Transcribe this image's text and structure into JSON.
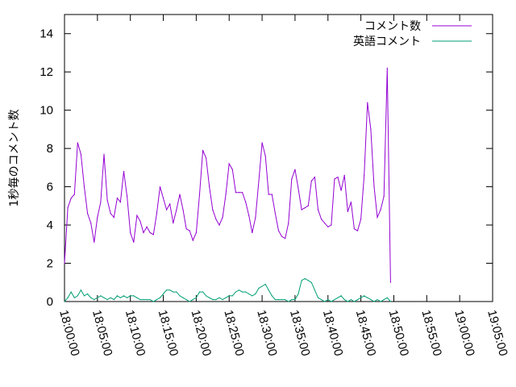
{
  "chart_data": {
    "type": "line",
    "title": "",
    "xlabel": "",
    "ylabel": "1秒毎のコメント数",
    "x_ticks": [
      "18:00:00",
      "18:05:00",
      "18:10:00",
      "18:15:00",
      "18:20:00",
      "18:25:00",
      "18:30:00",
      "18:35:00",
      "18:40:00",
      "18:45:00",
      "18:50:00",
      "18:55:00",
      "19:00:00",
      "19:05:00"
    ],
    "y_ticks": [
      "0",
      "2",
      "4",
      "6",
      "8",
      "10",
      "12",
      "14"
    ],
    "xlim": [
      "18:00:00",
      "19:05:00"
    ],
    "ylim": [
      0,
      15
    ],
    "legend_position": "top-right",
    "grid": false,
    "series": [
      {
        "name": "コメント数",
        "color": "#9400d3",
        "points": [
          [
            "18:00:00",
            2.0
          ],
          [
            "18:00:30",
            4.9
          ],
          [
            "18:01:00",
            5.4
          ],
          [
            "18:01:30",
            5.6
          ],
          [
            "18:02:00",
            8.3
          ],
          [
            "18:02:30",
            7.7
          ],
          [
            "18:03:00",
            6.0
          ],
          [
            "18:03:30",
            4.6
          ],
          [
            "18:04:00",
            4.1
          ],
          [
            "18:04:30",
            3.1
          ],
          [
            "18:05:00",
            4.4
          ],
          [
            "18:05:30",
            5.2
          ],
          [
            "18:06:00",
            7.7
          ],
          [
            "18:06:30",
            5.3
          ],
          [
            "18:07:00",
            4.6
          ],
          [
            "18:07:30",
            4.4
          ],
          [
            "18:08:00",
            5.4
          ],
          [
            "18:08:30",
            5.2
          ],
          [
            "18:09:00",
            6.8
          ],
          [
            "18:09:30",
            5.5
          ],
          [
            "18:10:00",
            3.6
          ],
          [
            "18:10:30",
            3.1
          ],
          [
            "18:11:00",
            4.5
          ],
          [
            "18:11:30",
            4.2
          ],
          [
            "18:12:00",
            3.6
          ],
          [
            "18:12:30",
            3.9
          ],
          [
            "18:13:00",
            3.6
          ],
          [
            "18:13:30",
            3.5
          ],
          [
            "18:14:00",
            4.6
          ],
          [
            "18:14:30",
            6.0
          ],
          [
            "18:15:00",
            5.4
          ],
          [
            "18:15:30",
            4.8
          ],
          [
            "18:16:00",
            5.1
          ],
          [
            "18:16:30",
            4.1
          ],
          [
            "18:17:00",
            4.8
          ],
          [
            "18:17:30",
            5.6
          ],
          [
            "18:18:00",
            4.8
          ],
          [
            "18:18:30",
            3.8
          ],
          [
            "18:19:00",
            3.7
          ],
          [
            "18:19:30",
            3.2
          ],
          [
            "18:20:00",
            3.6
          ],
          [
            "18:20:30",
            5.6
          ],
          [
            "18:21:00",
            7.9
          ],
          [
            "18:21:30",
            7.5
          ],
          [
            "18:22:00",
            6.0
          ],
          [
            "18:22:30",
            4.8
          ],
          [
            "18:23:00",
            4.3
          ],
          [
            "18:23:30",
            4.0
          ],
          [
            "18:24:00",
            4.4
          ],
          [
            "18:24:30",
            5.6
          ],
          [
            "18:25:00",
            7.2
          ],
          [
            "18:25:30",
            6.9
          ],
          [
            "18:26:00",
            5.7
          ],
          [
            "18:26:30",
            5.7
          ],
          [
            "18:27:00",
            5.7
          ],
          [
            "18:27:30",
            5.2
          ],
          [
            "18:28:00",
            4.5
          ],
          [
            "18:28:30",
            3.6
          ],
          [
            "18:29:00",
            4.4
          ],
          [
            "18:29:30",
            6.3
          ],
          [
            "18:30:00",
            8.3
          ],
          [
            "18:30:30",
            7.6
          ],
          [
            "18:31:00",
            5.6
          ],
          [
            "18:31:30",
            5.6
          ],
          [
            "18:32:00",
            4.6
          ],
          [
            "18:32:30",
            3.7
          ],
          [
            "18:33:00",
            3.4
          ],
          [
            "18:33:30",
            3.3
          ],
          [
            "18:34:00",
            4.1
          ],
          [
            "18:34:30",
            6.4
          ],
          [
            "18:35:00",
            6.9
          ],
          [
            "18:35:30",
            5.9
          ],
          [
            "18:36:00",
            4.8
          ],
          [
            "18:36:30",
            4.9
          ],
          [
            "18:37:00",
            5.0
          ],
          [
            "18:37:30",
            6.3
          ],
          [
            "18:38:00",
            6.5
          ],
          [
            "18:38:30",
            4.8
          ],
          [
            "18:39:00",
            4.3
          ],
          [
            "18:39:30",
            4.1
          ],
          [
            "18:40:00",
            3.9
          ],
          [
            "18:40:30",
            4.0
          ],
          [
            "18:41:00",
            6.4
          ],
          [
            "18:41:30",
            6.5
          ],
          [
            "18:42:00",
            5.8
          ],
          [
            "18:42:30",
            6.6
          ],
          [
            "18:43:00",
            4.7
          ],
          [
            "18:43:30",
            5.2
          ],
          [
            "18:44:00",
            3.8
          ],
          [
            "18:44:30",
            3.7
          ],
          [
            "18:45:00",
            4.3
          ],
          [
            "18:45:30",
            6.6
          ],
          [
            "18:46:00",
            10.4
          ],
          [
            "18:46:30",
            9.0
          ],
          [
            "18:47:00",
            6.0
          ],
          [
            "18:47:30",
            4.4
          ],
          [
            "18:48:00",
            4.8
          ],
          [
            "18:48:30",
            5.5
          ],
          [
            "18:49:00",
            12.2
          ],
          [
            "18:49:30",
            1.0
          ]
        ]
      },
      {
        "name": "英語コメント",
        "color": "#009e73",
        "points": [
          [
            "18:00:00",
            0.0
          ],
          [
            "18:00:30",
            0.2
          ],
          [
            "18:01:00",
            0.5
          ],
          [
            "18:01:30",
            0.2
          ],
          [
            "18:02:00",
            0.3
          ],
          [
            "18:02:30",
            0.6
          ],
          [
            "18:03:00",
            0.3
          ],
          [
            "18:03:30",
            0.4
          ],
          [
            "18:04:00",
            0.2
          ],
          [
            "18:04:30",
            0.1
          ],
          [
            "18:05:00",
            0.2
          ],
          [
            "18:05:30",
            0.3
          ],
          [
            "18:06:00",
            0.2
          ],
          [
            "18:06:30",
            0.1
          ],
          [
            "18:07:00",
            0.2
          ],
          [
            "18:07:30",
            0.1
          ],
          [
            "18:08:00",
            0.3
          ],
          [
            "18:08:30",
            0.2
          ],
          [
            "18:09:00",
            0.3
          ],
          [
            "18:09:30",
            0.2
          ],
          [
            "18:10:00",
            0.3
          ],
          [
            "18:10:30",
            0.3
          ],
          [
            "18:11:00",
            0.2
          ],
          [
            "18:11:30",
            0.1
          ],
          [
            "18:12:00",
            0.1
          ],
          [
            "18:12:30",
            0.1
          ],
          [
            "18:13:00",
            0.1
          ],
          [
            "18:13:30",
            0.0
          ],
          [
            "18:14:00",
            0.1
          ],
          [
            "18:14:30",
            0.2
          ],
          [
            "18:15:00",
            0.4
          ],
          [
            "18:15:30",
            0.6
          ],
          [
            "18:16:00",
            0.6
          ],
          [
            "18:16:30",
            0.5
          ],
          [
            "18:17:00",
            0.5
          ],
          [
            "18:17:30",
            0.3
          ],
          [
            "18:18:00",
            0.2
          ],
          [
            "18:18:30",
            0.1
          ],
          [
            "18:19:00",
            0.0
          ],
          [
            "18:19:30",
            0.1
          ],
          [
            "18:20:00",
            0.2
          ],
          [
            "18:20:30",
            0.5
          ],
          [
            "18:21:00",
            0.5
          ],
          [
            "18:21:30",
            0.3
          ],
          [
            "18:22:00",
            0.2
          ],
          [
            "18:22:30",
            0.1
          ],
          [
            "18:23:00",
            0.1
          ],
          [
            "18:23:30",
            0.2
          ],
          [
            "18:24:00",
            0.1
          ],
          [
            "18:24:30",
            0.2
          ],
          [
            "18:25:00",
            0.3
          ],
          [
            "18:25:30",
            0.3
          ],
          [
            "18:26:00",
            0.5
          ],
          [
            "18:26:30",
            0.6
          ],
          [
            "18:27:00",
            0.5
          ],
          [
            "18:27:30",
            0.5
          ],
          [
            "18:28:00",
            0.4
          ],
          [
            "18:28:30",
            0.3
          ],
          [
            "18:29:00",
            0.4
          ],
          [
            "18:29:30",
            0.7
          ],
          [
            "18:30:00",
            0.8
          ],
          [
            "18:30:30",
            0.9
          ],
          [
            "18:31:00",
            0.6
          ],
          [
            "18:31:30",
            0.3
          ],
          [
            "18:32:00",
            0.1
          ],
          [
            "18:32:30",
            0.1
          ],
          [
            "18:33:00",
            0.1
          ],
          [
            "18:33:30",
            0.1
          ],
          [
            "18:34:00",
            0.0
          ],
          [
            "18:34:30",
            0.1
          ],
          [
            "18:35:00",
            0.1
          ],
          [
            "18:35:30",
            0.4
          ],
          [
            "18:36:00",
            1.1
          ],
          [
            "18:36:30",
            1.2
          ],
          [
            "18:37:00",
            1.1
          ],
          [
            "18:37:30",
            1.0
          ],
          [
            "18:38:00",
            0.6
          ],
          [
            "18:38:30",
            0.2
          ],
          [
            "18:39:00",
            0.1
          ],
          [
            "18:39:30",
            0.0
          ],
          [
            "18:40:00",
            0.1
          ],
          [
            "18:40:30",
            0.0
          ],
          [
            "18:41:00",
            0.1
          ],
          [
            "18:41:30",
            0.2
          ],
          [
            "18:42:00",
            0.3
          ],
          [
            "18:42:30",
            0.1
          ],
          [
            "18:43:00",
            0.0
          ],
          [
            "18:43:30",
            0.1
          ],
          [
            "18:44:00",
            0.0
          ],
          [
            "18:44:30",
            0.1
          ],
          [
            "18:45:00",
            0.2
          ],
          [
            "18:45:30",
            0.3
          ],
          [
            "18:46:00",
            0.2
          ],
          [
            "18:46:30",
            0.1
          ],
          [
            "18:47:00",
            0.0
          ],
          [
            "18:47:30",
            0.1
          ],
          [
            "18:48:00",
            0.0
          ],
          [
            "18:48:30",
            0.1
          ],
          [
            "18:49:00",
            0.2
          ],
          [
            "18:49:30",
            0.0
          ]
        ]
      }
    ]
  }
}
